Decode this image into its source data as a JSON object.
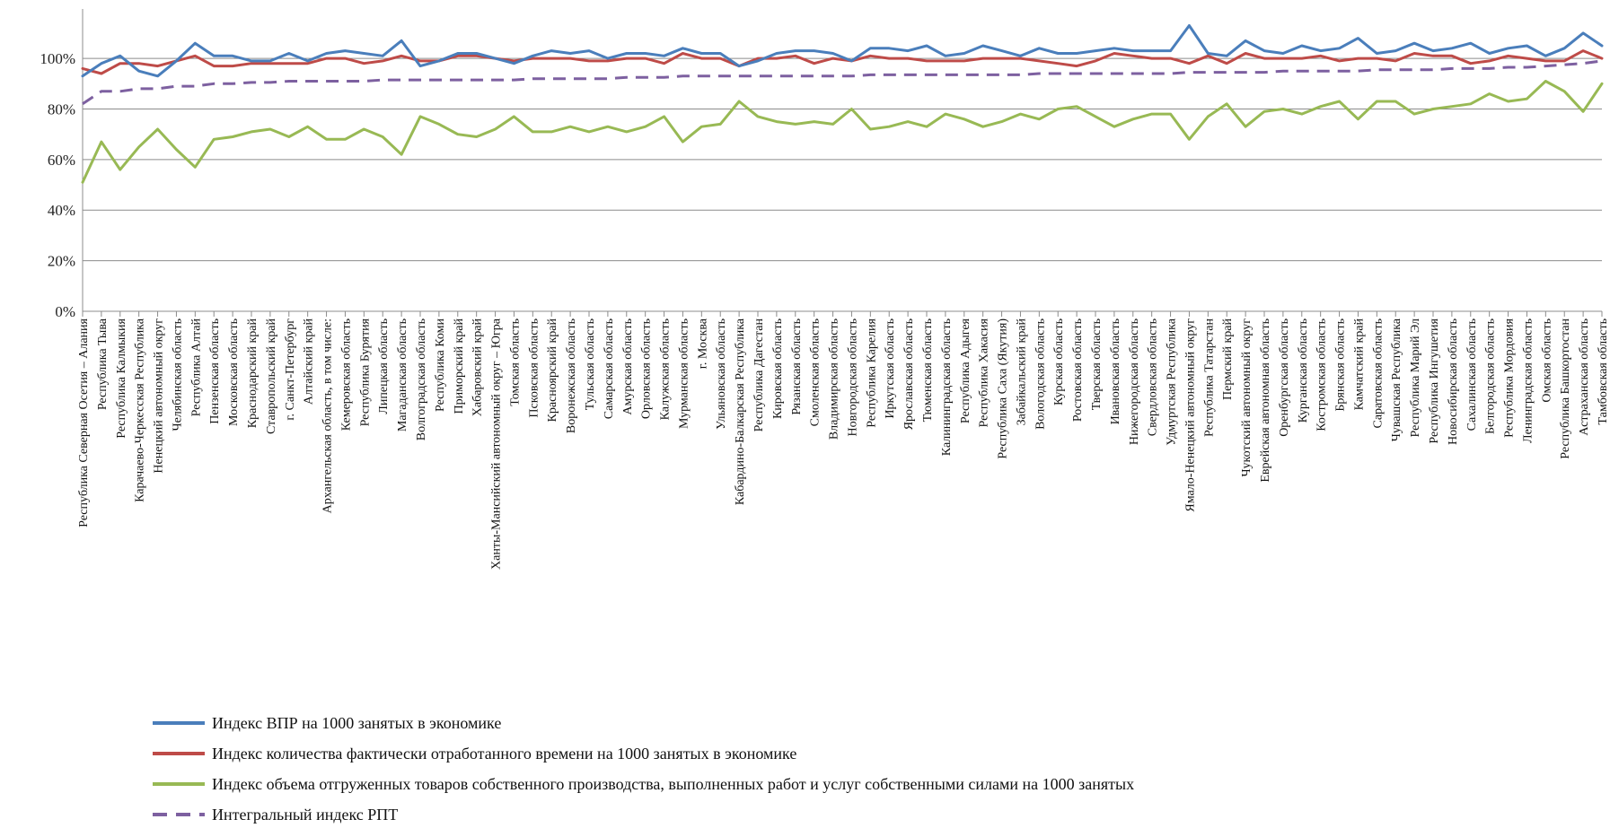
{
  "chart_data": {
    "type": "line",
    "y_ticks": [
      "0%",
      "20%",
      "40%",
      "60%",
      "80%",
      "100%"
    ],
    "ylim": [
      0,
      1.16
    ],
    "grid": true,
    "legend_position": "bottom-left",
    "categories": [
      "Республика Северная Осетия – Алания",
      "Республика Тыва",
      "Республика Калмыкия",
      "Карачаево-Черкесская Республика",
      "Ненецкий автономный округ",
      "Челябинская область",
      "Республика Алтай",
      "Пензенская область",
      "Московская область",
      "Краснодарский край",
      "Ставропольский край",
      "г. Санкт-Петербург",
      "Алтайский край",
      "Архангельская область, в том числе:",
      "Кемеровская область",
      "Республика Бурятия",
      "Липецкая область",
      "Магаданская область",
      "Волгоградская область",
      "Республика Коми",
      "Приморский край",
      "Хабаровский край",
      "Ханты-Мансийский автономный округ – Югра",
      "Томская область",
      "Псковская область",
      "Красноярский край",
      "Воронежская область",
      "Тульская область",
      "Самарская область",
      "Амурская область",
      "Орловская область",
      "Калужская область",
      "Мурманская область",
      "г. Москва",
      "Ульяновская область",
      "Кабардино-Балкарская Республика",
      "Республика Дагестан",
      "Кировская область",
      "Рязанская область",
      "Смоленская область",
      "Владимирская область",
      "Новгородская область",
      "Республика Карелия",
      "Иркутская область",
      "Ярославская область",
      "Тюменская область",
      "Калининградская область",
      "Республика Адыгея",
      "Республика Хакасия",
      "Республика Саха (Якутия)",
      "Забайкальский край",
      "Вологодская область",
      "Курская область",
      "Ростовская область",
      "Тверская область",
      "Ивановская область",
      "Нижегородская область",
      "Свердловская область",
      "Удмуртская Республика",
      "Ямало-Ненецкий автономный округ",
      "Республика Татарстан",
      "Пермский край",
      "Чукотский автономный округ",
      "Еврейская автономная область",
      "Оренбургская область",
      "Курганская область",
      "Костромская область",
      "Брянская область",
      "Камчатский край",
      "Саратовская область",
      "Чувашская Республика",
      "Республика Марий Эл",
      "Республика Ингушетия",
      "Новосибирская область",
      "Сахалинская область",
      "Белгородская область",
      "Республика Мордовия",
      "Ленинградская область",
      "Омская область",
      "Республика Башкортостан",
      "Астраханская область",
      "Тамбовская область"
    ],
    "series": [
      {
        "name": "Индекс ВПР на 1000 занятых в экономике",
        "color": "#4a7ebb",
        "dash": "solid",
        "values": [
          0.93,
          0.98,
          1.01,
          0.95,
          0.93,
          0.99,
          1.06,
          1.01,
          1.01,
          0.99,
          0.99,
          1.02,
          0.99,
          1.02,
          1.03,
          1.02,
          1.01,
          1.07,
          0.97,
          0.99,
          1.02,
          1.02,
          1.0,
          0.98,
          1.01,
          1.03,
          1.02,
          1.03,
          1.0,
          1.02,
          1.02,
          1.01,
          1.04,
          1.02,
          1.02,
          0.97,
          0.99,
          1.02,
          1.03,
          1.03,
          1.02,
          0.99,
          1.04,
          1.04,
          1.03,
          1.05,
          1.01,
          1.02,
          1.05,
          1.03,
          1.01,
          1.04,
          1.02,
          1.02,
          1.03,
          1.04,
          1.03,
          1.03,
          1.03,
          1.13,
          1.02,
          1.01,
          1.07,
          1.03,
          1.02,
          1.05,
          1.03,
          1.04,
          1.08,
          1.02,
          1.03,
          1.06,
          1.03,
          1.04,
          1.06,
          1.02,
          1.04,
          1.05,
          1.01,
          1.04,
          1.1,
          1.05
        ]
      },
      {
        "name": "Индекс количества фактически отработанного времени на 1000 занятых в экономике",
        "color": "#be4b48",
        "dash": "solid",
        "values": [
          0.96,
          0.94,
          0.98,
          0.98,
          0.97,
          0.99,
          1.01,
          0.97,
          0.97,
          0.98,
          0.98,
          0.98,
          0.98,
          1.0,
          1.0,
          0.98,
          0.99,
          1.01,
          0.99,
          0.99,
          1.01,
          1.01,
          1.0,
          0.99,
          1.0,
          1.0,
          1.0,
          0.99,
          0.99,
          1.0,
          1.0,
          0.98,
          1.02,
          1.0,
          1.0,
          0.97,
          1.0,
          1.0,
          1.01,
          0.98,
          1.0,
          0.99,
          1.01,
          1.0,
          1.0,
          0.99,
          0.99,
          0.99,
          1.0,
          1.0,
          1.0,
          0.99,
          0.98,
          0.97,
          0.99,
          1.02,
          1.01,
          1.0,
          1.0,
          0.98,
          1.01,
          0.98,
          1.02,
          1.0,
          1.0,
          1.0,
          1.01,
          0.99,
          1.0,
          1.0,
          0.99,
          1.02,
          1.01,
          1.01,
          0.98,
          0.99,
          1.01,
          1.0,
          0.99,
          0.99,
          1.03,
          1.0
        ]
      },
      {
        "name": "Индекс объема отгруженных товаров собственного производства, выполненных работ и услуг собственными силами на 1000 занятых",
        "color": "#98b954",
        "dash": "solid",
        "values": [
          0.51,
          0.67,
          0.56,
          0.65,
          0.72,
          0.64,
          0.57,
          0.68,
          0.69,
          0.71,
          0.72,
          0.69,
          0.73,
          0.68,
          0.68,
          0.72,
          0.69,
          0.62,
          0.77,
          0.74,
          0.7,
          0.69,
          0.72,
          0.77,
          0.71,
          0.71,
          0.73,
          0.71,
          0.73,
          0.71,
          0.73,
          0.77,
          0.67,
          0.73,
          0.74,
          0.83,
          0.77,
          0.75,
          0.74,
          0.75,
          0.74,
          0.8,
          0.72,
          0.73,
          0.75,
          0.73,
          0.78,
          0.76,
          0.73,
          0.75,
          0.78,
          0.76,
          0.8,
          0.81,
          0.77,
          0.73,
          0.76,
          0.78,
          0.78,
          0.68,
          0.77,
          0.82,
          0.73,
          0.79,
          0.8,
          0.78,
          0.81,
          0.83,
          0.76,
          0.83,
          0.83,
          0.78,
          0.8,
          0.81,
          0.82,
          0.86,
          0.83,
          0.84,
          0.91,
          0.87,
          0.79,
          0.9
        ]
      },
      {
        "name": "Интегральный индекс РПТ",
        "color": "#7d60a0",
        "dash": "dashed",
        "values": [
          0.82,
          0.87,
          0.87,
          0.88,
          0.88,
          0.89,
          0.89,
          0.9,
          0.9,
          0.905,
          0.905,
          0.91,
          0.91,
          0.91,
          0.91,
          0.91,
          0.915,
          0.915,
          0.915,
          0.915,
          0.915,
          0.915,
          0.915,
          0.915,
          0.92,
          0.92,
          0.92,
          0.92,
          0.92,
          0.925,
          0.925,
          0.925,
          0.93,
          0.93,
          0.93,
          0.93,
          0.93,
          0.93,
          0.93,
          0.93,
          0.93,
          0.93,
          0.935,
          0.935,
          0.935,
          0.935,
          0.935,
          0.935,
          0.935,
          0.935,
          0.935,
          0.94,
          0.94,
          0.94,
          0.94,
          0.94,
          0.94,
          0.94,
          0.94,
          0.945,
          0.945,
          0.945,
          0.945,
          0.945,
          0.95,
          0.95,
          0.95,
          0.95,
          0.95,
          0.955,
          0.955,
          0.955,
          0.955,
          0.96,
          0.96,
          0.96,
          0.965,
          0.965,
          0.97,
          0.975,
          0.98,
          0.99
        ]
      }
    ]
  }
}
